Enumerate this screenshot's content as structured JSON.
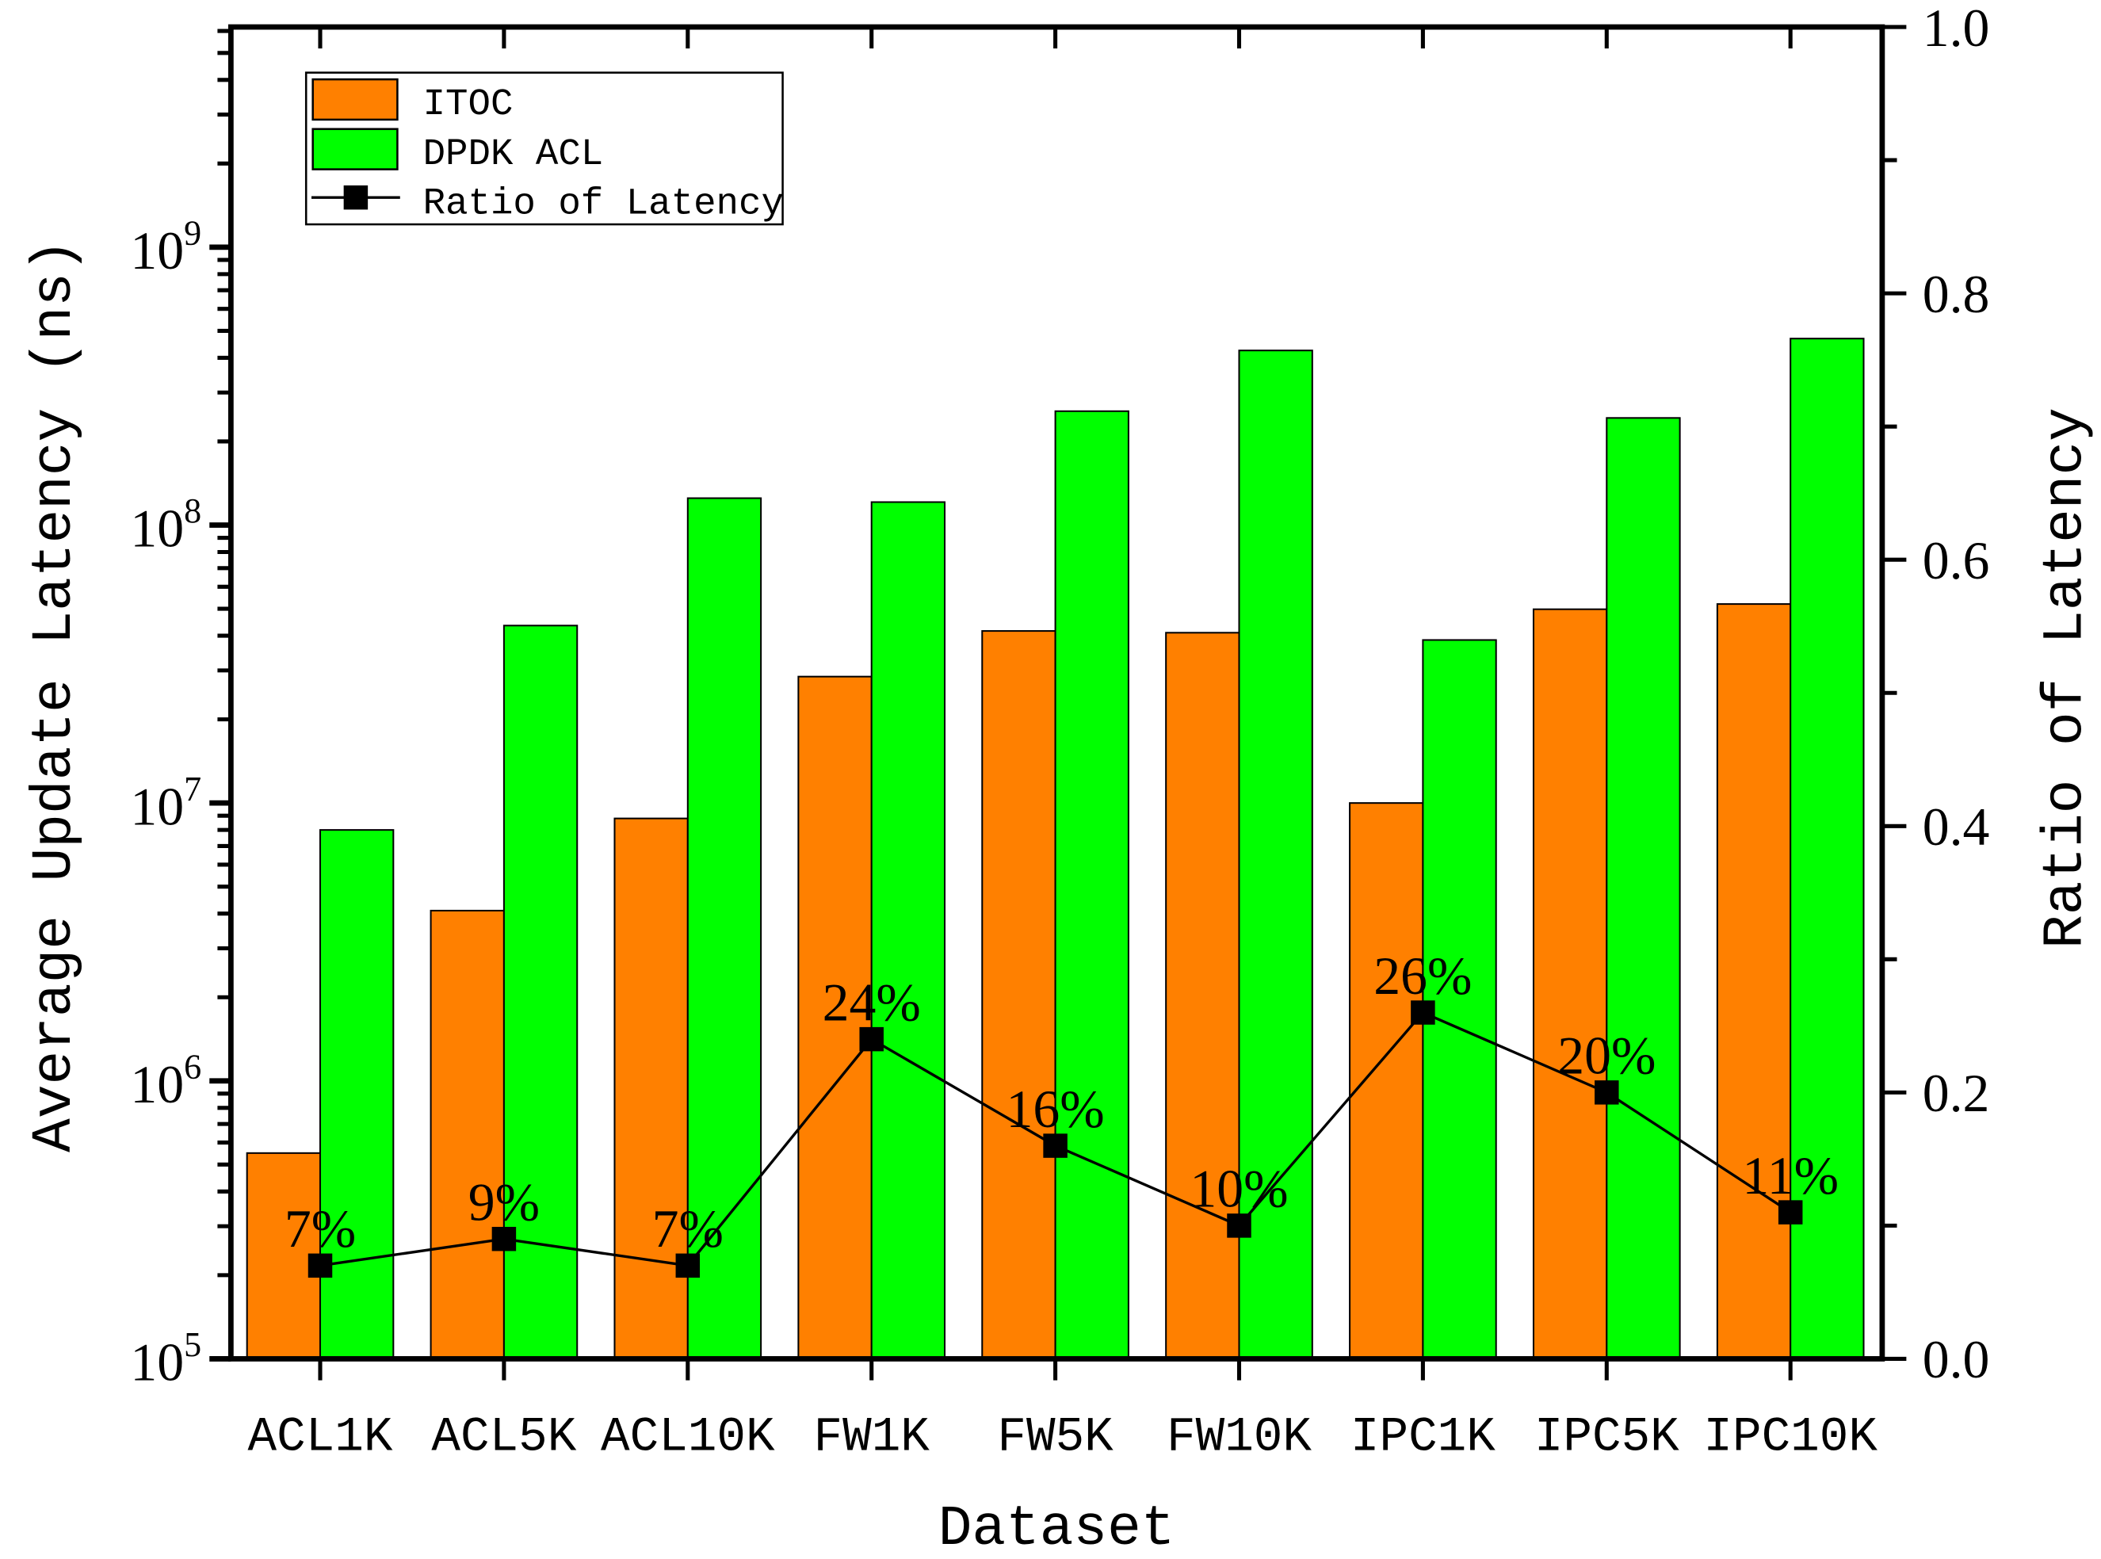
{
  "chart_data": {
    "type": "bar",
    "title": "",
    "xlabel": "Dataset",
    "ylabel": "Average Update Latency (ns)",
    "y2label": "Ratio of Latency",
    "yscale": "log",
    "ylim": [
      100000,
      6200000000
    ],
    "y2lim": [
      0.0,
      1.0
    ],
    "yticks": [
      {
        "base": "10",
        "exp": "5",
        "value": 100000
      },
      {
        "base": "10",
        "exp": "6",
        "value": 1000000
      },
      {
        "base": "10",
        "exp": "7",
        "value": 10000000
      },
      {
        "base": "10",
        "exp": "8",
        "value": 100000000
      },
      {
        "base": "10",
        "exp": "9",
        "value": 1000000000
      }
    ],
    "y2ticks": [
      "0.0",
      "0.2",
      "0.4",
      "0.6",
      "0.8",
      "1.0"
    ],
    "y2tick_values": [
      0.0,
      0.2,
      0.4,
      0.6,
      0.8,
      1.0
    ],
    "categories": [
      "ACL1K",
      "ACL5K",
      "ACL10K",
      "FW1K",
      "FW5K",
      "FW10K",
      "IPC1K",
      "IPC5K",
      "IPC10K"
    ],
    "series": [
      {
        "name": "ITOC",
        "type": "bar",
        "color": "#FF8000",
        "values": [
          550000,
          4100000,
          8800000,
          28500000,
          41600000,
          41000000,
          10000000,
          49800000,
          52000000
        ]
      },
      {
        "name": "DPDK ACL",
        "type": "bar",
        "color": "#00FF00",
        "values": [
          8000000,
          43500000,
          125000000,
          121000000,
          257000000,
          425000000,
          38600000,
          243000000,
          469000000
        ]
      },
      {
        "name": "Ratio of Latency",
        "type": "line",
        "axis": "right",
        "color": "#000000",
        "values": [
          0.07,
          0.09,
          0.07,
          0.24,
          0.16,
          0.1,
          0.26,
          0.2,
          0.11
        ],
        "labels": [
          "7%",
          "9%",
          "7%",
          "24%",
          "16%",
          "10%",
          "26%",
          "20%",
          "11%"
        ]
      }
    ],
    "legend": {
      "position": "top-left",
      "entries": [
        "ITOC",
        "DPDK ACL",
        "Ratio of Latency"
      ]
    },
    "grid": false
  }
}
